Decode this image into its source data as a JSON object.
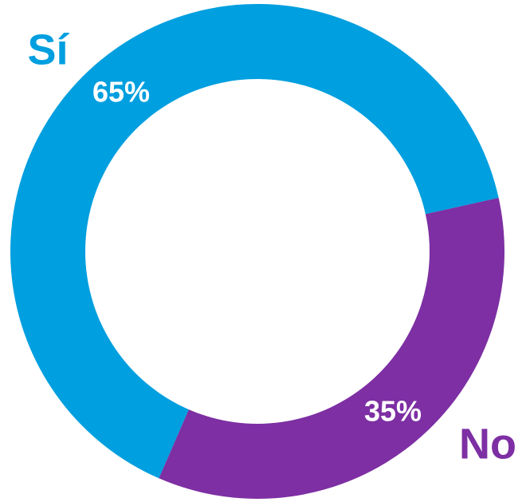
{
  "chart_data": {
    "type": "donut",
    "categories": [
      "Sí",
      "No"
    ],
    "values": [
      65,
      35
    ],
    "value_labels": [
      "65%",
      "35%"
    ],
    "colors": [
      "#009fdf",
      "#7d2fa3"
    ]
  }
}
